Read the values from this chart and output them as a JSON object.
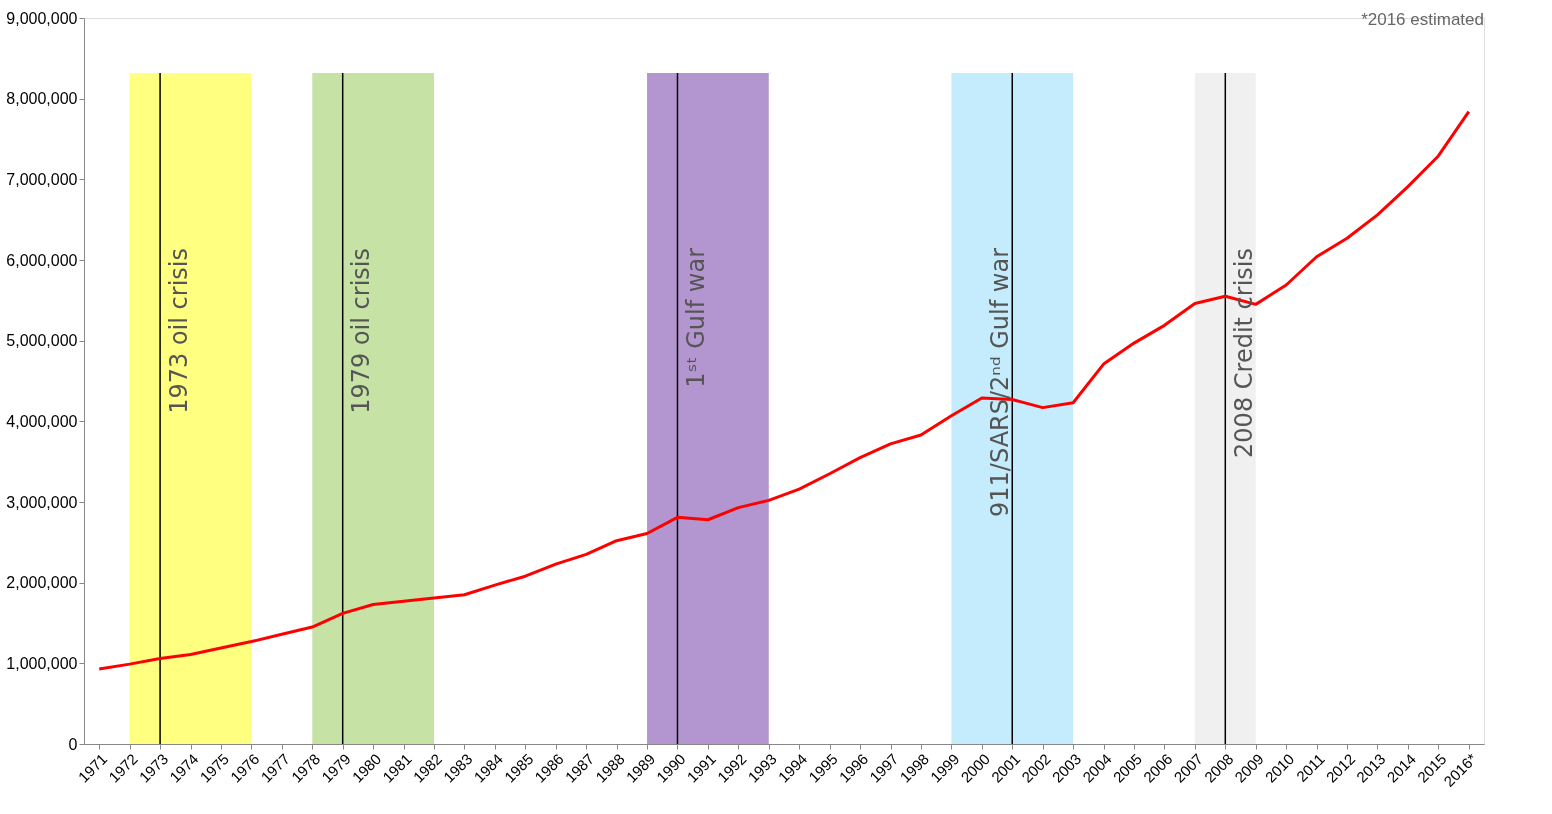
{
  "chart_data": {
    "type": "line",
    "categories": [
      "1971",
      "1972",
      "1973",
      "1974",
      "1975",
      "1976",
      "1977",
      "1978",
      "1979",
      "1980",
      "1981",
      "1982",
      "1983",
      "1984",
      "1985",
      "1986",
      "1987",
      "1988",
      "1989",
      "1990",
      "1991",
      "1992",
      "1993",
      "1994",
      "1995",
      "1996",
      "1997",
      "1998",
      "1999",
      "2000",
      "2001",
      "2002",
      "2003",
      "2004",
      "2005",
      "2006",
      "2007",
      "2008",
      "2009",
      "2010",
      "2011",
      "2012",
      "2013",
      "2014",
      "2015",
      "2016*"
    ],
    "series": [
      {
        "color": "#ff0000",
        "values": [
          930000,
          990000,
          1060000,
          1110000,
          1190000,
          1270000,
          1360000,
          1450000,
          1620000,
          1730000,
          1770000,
          1810000,
          1850000,
          1970000,
          2080000,
          2230000,
          2350000,
          2520000,
          2610000,
          2810000,
          2780000,
          2930000,
          3020000,
          3160000,
          3350000,
          3550000,
          3720000,
          3830000,
          4070000,
          4290000,
          4270000,
          4170000,
          4230000,
          4710000,
          4970000,
          5190000,
          5460000,
          5550000,
          5450000,
          5690000,
          6040000,
          6270000,
          6560000,
          6910000,
          7290000,
          7840000
        ]
      }
    ],
    "ylim": [
      0,
      9000000
    ],
    "yticks": [
      0,
      {
        "value": 1000000,
        "label": "1,000,000"
      },
      {
        "value": 2000000,
        "label": "2,000,000"
      },
      {
        "value": 3000000,
        "label": "3,000,000"
      },
      {
        "value": 4000000,
        "label": "4,000,000"
      },
      {
        "value": 5000000,
        "label": "5,000,000"
      },
      {
        "value": 6000000,
        "label": "6,000,000"
      },
      {
        "value": 7000000,
        "label": "7,000,000"
      },
      {
        "value": 8000000,
        "label": "8,000,000"
      },
      {
        "value": 9000000,
        "label": "9,000,000"
      }
    ],
    "grid": false,
    "legend": false,
    "marker": "none",
    "line_style": "solid",
    "bands": [
      {
        "axis": "x",
        "from": "1972",
        "to": "1976",
        "label": "1973 oil crisis",
        "color": "#ffff80"
      },
      {
        "axis": "x",
        "from": "1978",
        "to": "1982",
        "label": "1979 oil crisis",
        "color": "#c6e3a5"
      },
      {
        "axis": "x",
        "from": "1989",
        "to": "1993",
        "label": "1ˢᵗ Gulf war",
        "color": "#b396cf"
      },
      {
        "axis": "x",
        "from": "1999",
        "to": "2003",
        "label": "911/SARS/2ⁿᵈ Gulf war",
        "color": "#c4ecfc"
      },
      {
        "axis": "x",
        "from": "2007",
        "to": "2009",
        "label": "2008 Credit crisis",
        "color": "#f0f0f0"
      }
    ],
    "ref_lines": [
      {
        "axis": "x",
        "value": "1973",
        "color": "#000000"
      },
      {
        "axis": "x",
        "value": "1979",
        "color": "#000000"
      },
      {
        "axis": "x",
        "value": "1990",
        "color": "#000000"
      },
      {
        "axis": "x",
        "value": "2001",
        "color": "#000000"
      },
      {
        "axis": "x",
        "value": "2008",
        "color": "#000000"
      }
    ],
    "annotations": [
      "*2016 estimated"
    ]
  }
}
